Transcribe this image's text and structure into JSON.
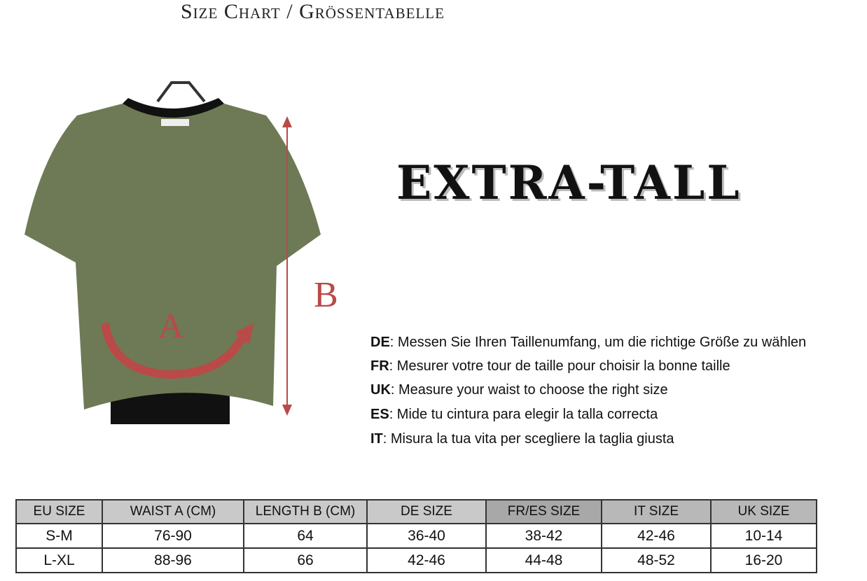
{
  "title": "Size Chart / Grössentabelle",
  "brand": "EXTRA-TALL",
  "diagram": {
    "label_a": "A",
    "label_b": "B",
    "arrow_color": "#b94a48",
    "shirt_color": "#6e7a55"
  },
  "instructions": [
    {
      "lang": "DE",
      "text": ": Messen Sie Ihren Taillenumfang, um die richtige Größe zu wählen"
    },
    {
      "lang": "FR",
      "text": ": Mesurer votre tour de taille pour choisir la bonne taille"
    },
    {
      "lang": "UK",
      "text": ": Measure your waist to choose the right size"
    },
    {
      "lang": "ES",
      "text": ": Mide tu cintura para elegir la talla correcta"
    },
    {
      "lang": "IT",
      "text": ": Misura la tua vita per scegliere la taglia giusta"
    }
  ],
  "table": {
    "headers": [
      "EU SIZE",
      "WAIST A (CM)",
      "LENGTH B (CM)",
      "DE SIZE",
      "FR/ES SIZE",
      "IT SIZE",
      "UK SIZE"
    ],
    "rows": [
      [
        "S-M",
        "76-90",
        "64",
        "36-40",
        "38-42",
        "42-46",
        "10-14"
      ],
      [
        "L-XL",
        "88-96",
        "66",
        "42-46",
        "44-48",
        "48-52",
        "16-20"
      ]
    ]
  }
}
